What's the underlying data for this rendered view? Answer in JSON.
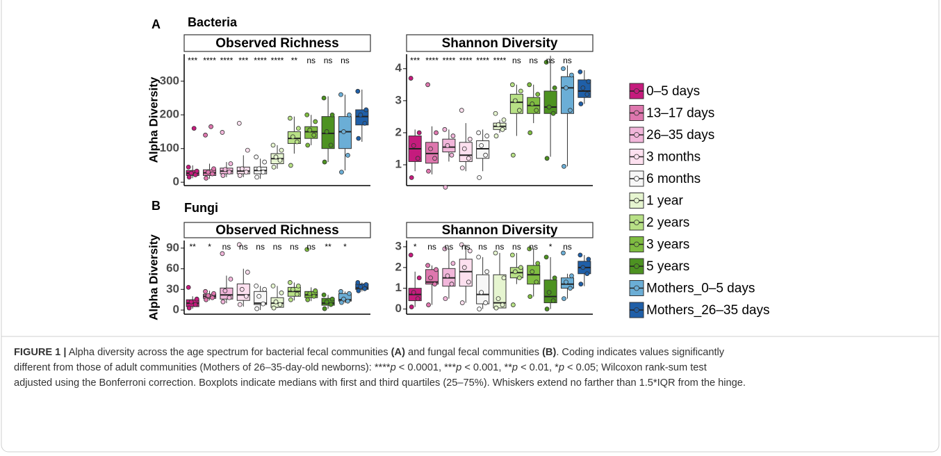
{
  "panels": [
    {
      "label": "A",
      "title": "Bacteria"
    },
    {
      "label": "B",
      "title": "Fungi"
    }
  ],
  "legend": {
    "items": [
      {
        "name": "0–5 days",
        "color": "#c51b7d"
      },
      {
        "name": "13–17 days",
        "color": "#de77ae"
      },
      {
        "name": "26–35 days",
        "color": "#f1b6da"
      },
      {
        "name": "3 months",
        "color": "#fde0ef"
      },
      {
        "name": "6 months",
        "color": "#f7f7f7"
      },
      {
        "name": "1 year",
        "color": "#e6f5d0"
      },
      {
        "name": "2 years",
        "color": "#b8e186"
      },
      {
        "name": "3 years",
        "color": "#7fbc41"
      },
      {
        "name": "5 years",
        "color": "#4d9221"
      },
      {
        "name": "Mothers_0–5 days",
        "color": "#6baed6"
      },
      {
        "name": "Mothers_26–35 days",
        "color": "#1f5fa8"
      }
    ]
  },
  "chart_data": [
    {
      "type": "box",
      "title": "Observed Richness",
      "ylabel": "Alpha Diversity",
      "ylim": [
        -10,
        380
      ],
      "yticks": [
        0,
        100,
        200,
        300
      ],
      "annotations": [
        "***",
        "****",
        "****",
        "***",
        "****",
        "****",
        "**",
        "ns",
        "ns",
        "ns",
        null
      ],
      "boxes": [
        {
          "whislo": 12,
          "q1": 20,
          "med": 27,
          "q3": 35,
          "whishi": 50,
          "points": [
            15,
            22,
            27,
            33,
            45,
            160
          ]
        },
        {
          "whislo": 10,
          "q1": 20,
          "med": 28,
          "q3": 37,
          "whishi": 55,
          "points": [
            12,
            25,
            30,
            40,
            140,
            165
          ]
        },
        {
          "whislo": 15,
          "q1": 25,
          "med": 33,
          "q3": 42,
          "whishi": 60,
          "points": [
            20,
            30,
            38,
            55,
            148
          ]
        },
        {
          "whislo": 15,
          "q1": 25,
          "med": 33,
          "q3": 45,
          "whishi": 80,
          "points": [
            20,
            30,
            40,
            95,
            175
          ]
        },
        {
          "whislo": 10,
          "q1": 25,
          "med": 35,
          "q3": 45,
          "whishi": 70,
          "points": [
            15,
            30,
            40,
            60,
            75
          ]
        },
        {
          "whislo": 40,
          "q1": 55,
          "med": 70,
          "q3": 85,
          "whishi": 110,
          "points": [
            45,
            65,
            75,
            95,
            110
          ]
        },
        {
          "whislo": 85,
          "q1": 115,
          "med": 130,
          "q3": 150,
          "whishi": 195,
          "points": [
            50,
            120,
            135,
            160,
            190
          ]
        },
        {
          "whislo": 110,
          "q1": 130,
          "med": 150,
          "q3": 165,
          "whishi": 200,
          "points": [
            110,
            140,
            155,
            180,
            200
          ]
        },
        {
          "whislo": 60,
          "q1": 100,
          "med": 145,
          "q3": 195,
          "whishi": 255,
          "points": [
            60,
            110,
            150,
            200,
            250
          ]
        },
        {
          "whislo": 35,
          "q1": 100,
          "med": 150,
          "q3": 195,
          "whishi": 260,
          "points": [
            30,
            80,
            150,
            200,
            260
          ]
        },
        {
          "whislo": 120,
          "q1": 170,
          "med": 195,
          "q3": 215,
          "whishi": 275,
          "points": [
            130,
            175,
            200,
            215,
            270
          ]
        }
      ]
    },
    {
      "type": "box",
      "title": "Shannon Diversity",
      "ylim": [
        0.35,
        4.45
      ],
      "yticks": [
        1,
        2,
        3,
        4
      ],
      "annotations": [
        "***",
        "****",
        "****",
        "****",
        "****",
        "****",
        "ns",
        "ns",
        "ns",
        "ns",
        null
      ],
      "boxes": [
        {
          "whislo": 0.8,
          "q1": 1.1,
          "med": 1.5,
          "q3": 1.9,
          "whishi": 2.1,
          "points": [
            0.6,
            1.2,
            1.6,
            2.0,
            3.7
          ]
        },
        {
          "whislo": 0.7,
          "q1": 1.05,
          "med": 1.35,
          "q3": 1.7,
          "whishi": 2.2,
          "points": [
            0.8,
            1.2,
            1.5,
            2.0,
            3.5
          ]
        },
        {
          "whislo": 1.1,
          "q1": 1.4,
          "med": 1.55,
          "q3": 1.8,
          "whishi": 2.1,
          "points": [
            0.3,
            1.3,
            1.6,
            1.9,
            2.1
          ]
        },
        {
          "whislo": 0.8,
          "q1": 1.1,
          "med": 1.3,
          "q3": 1.7,
          "whishi": 2.3,
          "points": [
            0.9,
            1.2,
            1.5,
            1.8,
            2.7
          ]
        },
        {
          "whislo": 0.8,
          "q1": 1.2,
          "med": 1.5,
          "q3": 1.75,
          "whishi": 2.1,
          "points": [
            0.6,
            1.3,
            1.6,
            1.9,
            2.0
          ]
        },
        {
          "whislo": 2.0,
          "q1": 2.1,
          "med": 2.2,
          "q3": 2.3,
          "whishi": 2.4,
          "points": [
            1.9,
            2.1,
            2.25,
            2.4,
            2.6
          ]
        },
        {
          "whislo": 1.9,
          "q1": 2.6,
          "med": 2.95,
          "q3": 3.2,
          "whishi": 3.5,
          "points": [
            1.3,
            2.7,
            3.0,
            3.3,
            3.5
          ]
        },
        {
          "whislo": 2.3,
          "q1": 2.6,
          "med": 2.85,
          "q3": 3.1,
          "whishi": 3.5,
          "points": [
            2.0,
            2.7,
            2.9,
            3.2,
            3.5
          ]
        },
        {
          "whislo": 1.25,
          "q1": 2.6,
          "med": 2.8,
          "q3": 3.3,
          "whishi": 4.4,
          "points": [
            1.2,
            2.6,
            2.8,
            3.4,
            4.2
          ]
        },
        {
          "whislo": 0.95,
          "q1": 2.6,
          "med": 3.4,
          "q3": 3.75,
          "whishi": 4.1,
          "points": [
            0.95,
            2.7,
            3.4,
            3.8,
            4.0
          ]
        },
        {
          "whislo": 2.9,
          "q1": 3.1,
          "med": 3.3,
          "q3": 3.65,
          "whishi": 3.95,
          "points": [
            2.9,
            3.2,
            3.4,
            3.6,
            3.9
          ]
        }
      ]
    },
    {
      "type": "box",
      "title": "Observed Richness",
      "ylabel": "Alpha Diversity",
      "ylim": [
        -6,
        101
      ],
      "yticks": [
        0,
        30,
        60,
        90
      ],
      "annotations": [
        "**",
        "*",
        "ns",
        "ns",
        "ns",
        "ns",
        "ns",
        "ns",
        "**",
        "*",
        null
      ],
      "boxes": [
        {
          "whislo": 2,
          "q1": 5,
          "med": 10,
          "q3": 15,
          "whishi": 20,
          "points": [
            3,
            8,
            12,
            16,
            33
          ]
        },
        {
          "whislo": 14,
          "q1": 17,
          "med": 20,
          "q3": 23,
          "whishi": 28,
          "points": [
            15,
            18,
            21,
            24,
            27
          ]
        },
        {
          "whislo": 10,
          "q1": 16,
          "med": 22,
          "q3": 32,
          "whishi": 50,
          "points": [
            12,
            18,
            28,
            45,
            82
          ]
        },
        {
          "whislo": 5,
          "q1": 14,
          "med": 22,
          "q3": 38,
          "whishi": 60,
          "points": [
            8,
            20,
            30,
            55,
            95
          ]
        },
        {
          "whislo": 0,
          "q1": 8,
          "med": 10,
          "q3": 27,
          "whishi": 35,
          "points": [
            2,
            9,
            20,
            30,
            35
          ]
        },
        {
          "whislo": 3,
          "q1": 4,
          "med": 10,
          "q3": 18,
          "whishi": 35,
          "points": [
            3,
            8,
            12,
            25,
            35
          ]
        },
        {
          "whislo": 14,
          "q1": 20,
          "med": 27,
          "q3": 33,
          "whishi": 40,
          "points": [
            15,
            23,
            30,
            35,
            40
          ]
        },
        {
          "whislo": 13,
          "q1": 18,
          "med": 22,
          "q3": 27,
          "whishi": 33,
          "points": [
            15,
            20,
            24,
            28,
            88
          ]
        },
        {
          "whislo": 2,
          "q1": 7,
          "med": 10,
          "q3": 17,
          "whishi": 22,
          "points": [
            2,
            8,
            12,
            16,
            22
          ]
        },
        {
          "whislo": 10,
          "q1": 13,
          "med": 15,
          "q3": 24,
          "whishi": 27,
          "points": [
            11,
            13,
            16,
            24,
            27
          ]
        },
        {
          "whislo": 27,
          "q1": 30,
          "med": 32,
          "q3": 38,
          "whishi": 40,
          "points": [
            28,
            31,
            34,
            37,
            40
          ]
        }
      ]
    },
    {
      "type": "box",
      "title": "Shannon Diversity",
      "ylim": [
        -0.25,
        3.3
      ],
      "yticks": [
        0,
        1,
        2,
        3
      ],
      "annotations": [
        "*",
        "ns",
        "ns",
        "ns",
        "ns",
        "ns",
        "ns",
        "ns",
        "*",
        "ns",
        null
      ],
      "boxes": [
        {
          "whislo": 0.1,
          "q1": 0.4,
          "med": 0.7,
          "q3": 1.0,
          "whishi": 1.8,
          "points": [
            0.1,
            0.5,
            0.8,
            1.5,
            2.6
          ]
        },
        {
          "whislo": 0.2,
          "q1": 1.2,
          "med": 1.3,
          "q3": 1.9,
          "whishi": 2.1,
          "points": [
            0.2,
            1.2,
            1.5,
            1.9,
            2.1
          ]
        },
        {
          "whislo": 0.5,
          "q1": 1.1,
          "med": 1.5,
          "q3": 1.95,
          "whishi": 2.9,
          "points": [
            0.5,
            1.2,
            1.6,
            2.2,
            2.9
          ]
        },
        {
          "whislo": 0.3,
          "q1": 1.1,
          "med": 1.8,
          "q3": 2.4,
          "whishi": 3.1,
          "points": [
            0.3,
            1.3,
            2.0,
            2.8,
            3.1
          ]
        },
        {
          "whislo": 0,
          "q1": 0.25,
          "med": 0.7,
          "q3": 1.65,
          "whishi": 2.5,
          "points": [
            0,
            0.3,
            0.8,
            1.8,
            2.5
          ]
        },
        {
          "whislo": 0.05,
          "q1": 0.05,
          "med": 0.3,
          "q3": 1.65,
          "whishi": 2.7,
          "points": [
            0.05,
            0.2,
            0.5,
            1.5,
            2.7
          ]
        },
        {
          "whislo": 1.2,
          "q1": 1.5,
          "med": 1.75,
          "q3": 2.0,
          "whishi": 2.7,
          "points": [
            0.2,
            1.5,
            1.8,
            2.0,
            2.6
          ]
        },
        {
          "whislo": 0.6,
          "q1": 1.2,
          "med": 1.65,
          "q3": 2.1,
          "whishi": 2.9,
          "points": [
            0.6,
            1.3,
            1.8,
            2.2,
            2.9
          ]
        },
        {
          "whislo": 0,
          "q1": 0.3,
          "med": 0.6,
          "q3": 1.4,
          "whishi": 2.5,
          "points": [
            0,
            0.4,
            0.8,
            1.5,
            2.5
          ]
        },
        {
          "whislo": 0.5,
          "q1": 1.0,
          "med": 1.2,
          "q3": 1.5,
          "whishi": 1.7,
          "points": [
            0.5,
            1.0,
            1.3,
            1.6,
            2.7
          ]
        },
        {
          "whislo": 1.1,
          "q1": 1.7,
          "med": 2.0,
          "q3": 2.3,
          "whishi": 2.6,
          "points": [
            1.2,
            1.7,
            2.0,
            2.4,
            2.6
          ]
        }
      ]
    }
  ],
  "caption": {
    "lines": [
      [
        {
          "text": "FIGURE 1 |",
          "b": true
        },
        {
          "text": " Alpha diversity across the age spectrum for bacterial fecal communities "
        },
        {
          "text": "(A)",
          "b": true
        },
        {
          "text": " and fungal fecal communities "
        },
        {
          "text": "(B)",
          "b": true
        },
        {
          "text": ". Coding indicates values significantly"
        }
      ],
      [
        {
          "text": "different from those of adult communities (Mothers of 26–35-day-old newborns): ****"
        },
        {
          "text": "p",
          "i": true
        },
        {
          "text": " < 0.0001, ***"
        },
        {
          "text": "p",
          "i": true
        },
        {
          "text": " < 0.001, **"
        },
        {
          "text": "p",
          "i": true
        },
        {
          "text": " < 0.01, *"
        },
        {
          "text": "p",
          "i": true
        },
        {
          "text": " < 0.05; Wilcoxon rank-sum test"
        }
      ],
      [
        {
          "text": "adjusted using the Bonferroni correction. Boxplots indicate medians with first and third quartiles (25–75%). Whiskers extend no farther than 1.5*IQR from the hinge."
        }
      ]
    ]
  }
}
